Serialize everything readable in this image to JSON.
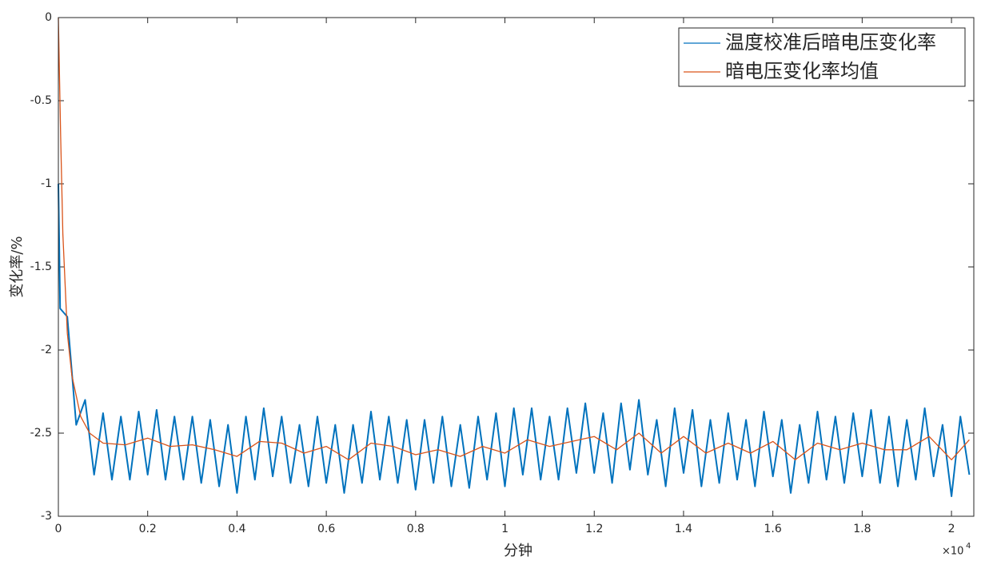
{
  "chart_data": {
    "type": "line",
    "xlabel": "分钟",
    "ylabel": "变化率/%",
    "x_multiplier": "×10",
    "x_multiplier_exp": "4",
    "xlim": [
      0,
      20500
    ],
    "ylim": [
      -3,
      0
    ],
    "xticks": [
      {
        "value": 0,
        "label": "0"
      },
      {
        "value": 2000,
        "label": "0.2"
      },
      {
        "value": 4000,
        "label": "0.4"
      },
      {
        "value": 6000,
        "label": "0.6"
      },
      {
        "value": 8000,
        "label": "0.8"
      },
      {
        "value": 10000,
        "label": "1"
      },
      {
        "value": 12000,
        "label": "1.2"
      },
      {
        "value": 14000,
        "label": "1.4"
      },
      {
        "value": 16000,
        "label": "1.6"
      },
      {
        "value": 18000,
        "label": "1.8"
      },
      {
        "value": 20000,
        "label": "2"
      }
    ],
    "yticks": [
      0,
      -0.5,
      -1,
      -1.5,
      -2,
      -2.5,
      -3
    ],
    "legend": "upper right",
    "series": [
      {
        "name": "温度校准后暗电压变化率",
        "color": "#0072bd",
        "x": [
          0,
          40,
          200,
          400,
          600,
          800,
          1000,
          1200,
          1400,
          1600,
          1800,
          2000,
          2200,
          2400,
          2600,
          2800,
          3000,
          3200,
          3400,
          3600,
          3800,
          4000,
          4200,
          4400,
          4600,
          4800,
          5000,
          5200,
          5400,
          5600,
          5800,
          6000,
          6200,
          6400,
          6600,
          6800,
          7000,
          7200,
          7400,
          7600,
          7800,
          8000,
          8200,
          8400,
          8600,
          8800,
          9000,
          9200,
          9400,
          9600,
          9800,
          10000,
          10200,
          10400,
          10600,
          10800,
          11000,
          11200,
          11400,
          11600,
          11800,
          12000,
          12200,
          12400,
          12600,
          12800,
          13000,
          13200,
          13400,
          13600,
          13800,
          14000,
          14200,
          14400,
          14600,
          14800,
          15000,
          15200,
          15400,
          15600,
          15800,
          16000,
          16200,
          16400,
          16600,
          16800,
          17000,
          17200,
          17400,
          17600,
          17800,
          18000,
          18200,
          18400,
          18600,
          18800,
          19000,
          19200,
          19400,
          19600,
          19800,
          20000,
          20200,
          20400
        ],
        "values": [
          -1.0,
          -1.75,
          -1.8,
          -2.45,
          -2.3,
          -2.75,
          -2.38,
          -2.78,
          -2.4,
          -2.78,
          -2.37,
          -2.75,
          -2.36,
          -2.78,
          -2.4,
          -2.78,
          -2.4,
          -2.8,
          -2.42,
          -2.82,
          -2.45,
          -2.86,
          -2.4,
          -2.78,
          -2.35,
          -2.76,
          -2.4,
          -2.8,
          -2.45,
          -2.82,
          -2.4,
          -2.8,
          -2.45,
          -2.86,
          -2.45,
          -2.8,
          -2.37,
          -2.78,
          -2.4,
          -2.8,
          -2.42,
          -2.84,
          -2.42,
          -2.8,
          -2.4,
          -2.82,
          -2.45,
          -2.83,
          -2.4,
          -2.78,
          -2.38,
          -2.82,
          -2.35,
          -2.75,
          -2.35,
          -2.78,
          -2.4,
          -2.78,
          -2.35,
          -2.74,
          -2.32,
          -2.74,
          -2.38,
          -2.8,
          -2.32,
          -2.72,
          -2.3,
          -2.75,
          -2.42,
          -2.82,
          -2.35,
          -2.74,
          -2.36,
          -2.82,
          -2.42,
          -2.8,
          -2.38,
          -2.78,
          -2.42,
          -2.82,
          -2.37,
          -2.76,
          -2.42,
          -2.86,
          -2.45,
          -2.8,
          -2.37,
          -2.78,
          -2.4,
          -2.8,
          -2.38,
          -2.76,
          -2.36,
          -2.8,
          -2.4,
          -2.82,
          -2.42,
          -2.78,
          -2.35,
          -2.76,
          -2.45,
          -2.88,
          -2.4,
          -2.75
        ]
      },
      {
        "name": "暗电压变化率均值",
        "color": "#d95319",
        "x": [
          0,
          50,
          100,
          200,
          300,
          500,
          700,
          1000,
          1500,
          2000,
          2500,
          3000,
          3500,
          4000,
          4500,
          5000,
          5500,
          6000,
          6500,
          7000,
          7500,
          8000,
          8500,
          9000,
          9500,
          10000,
          10500,
          11000,
          11500,
          12000,
          12500,
          13000,
          13500,
          14000,
          14500,
          15000,
          15500,
          16000,
          16500,
          17000,
          17500,
          18000,
          18500,
          19000,
          19500,
          20000,
          20400
        ],
        "values": [
          0,
          -0.7,
          -1.3,
          -1.9,
          -2.15,
          -2.4,
          -2.5,
          -2.56,
          -2.57,
          -2.53,
          -2.58,
          -2.57,
          -2.6,
          -2.64,
          -2.55,
          -2.56,
          -2.62,
          -2.58,
          -2.66,
          -2.56,
          -2.58,
          -2.63,
          -2.6,
          -2.64,
          -2.58,
          -2.62,
          -2.54,
          -2.58,
          -2.55,
          -2.52,
          -2.6,
          -2.5,
          -2.62,
          -2.52,
          -2.62,
          -2.56,
          -2.62,
          -2.55,
          -2.66,
          -2.56,
          -2.6,
          -2.56,
          -2.6,
          -2.6,
          -2.52,
          -2.66,
          -2.54
        ]
      }
    ]
  }
}
